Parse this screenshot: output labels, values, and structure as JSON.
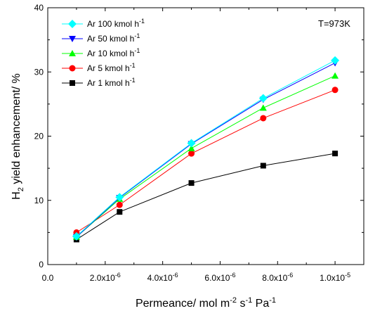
{
  "chart_data": {
    "type": "line",
    "title": "",
    "annotation": "T=973K",
    "xlabel": {
      "main": "Permeance/ mol m",
      "sup1": "-2",
      "mid1": " s",
      "sup2": "-1",
      "mid2": " Pa",
      "sup3": "-1"
    },
    "ylabel": {
      "main": "H",
      "sub": "2",
      "rest": " yield enhancement/ %"
    },
    "x": [
      1e-06,
      2.5e-06,
      5e-06,
      7.5e-06,
      1e-05
    ],
    "xlim": [
      0,
      1.1e-05
    ],
    "ylim": [
      0,
      40
    ],
    "xticks": [
      {
        "value": 0,
        "base": "0.0",
        "exp": ""
      },
      {
        "value": 2e-06,
        "base": "2.0x10",
        "exp": "-6"
      },
      {
        "value": 4e-06,
        "base": "4.0x10",
        "exp": "-6"
      },
      {
        "value": 6e-06,
        "base": "6.0x10",
        "exp": "-6"
      },
      {
        "value": 8e-06,
        "base": "8.0x10",
        "exp": "-6"
      },
      {
        "value": 1e-05,
        "base": "1.0x10",
        "exp": "-5"
      }
    ],
    "yticks": [
      0,
      10,
      20,
      30,
      40
    ],
    "grid": false,
    "legend_position": "top-left",
    "series": [
      {
        "name": "Ar 100 kmol h",
        "name_sup": "-1",
        "color": "#00FFFF",
        "marker": "diamond",
        "values": [
          4.4,
          10.5,
          18.9,
          25.9,
          31.8
        ]
      },
      {
        "name": "Ar 50 kmol h",
        "name_sup": "-1",
        "color": "#0000FF",
        "marker": "triangle-down",
        "values": [
          4.3,
          10.4,
          18.8,
          25.7,
          31.4
        ]
      },
      {
        "name": "Ar 10 kmol h",
        "name_sup": "-1",
        "color": "#00FF00",
        "marker": "triangle-up",
        "values": [
          4.3,
          10.2,
          18.1,
          24.4,
          29.4
        ]
      },
      {
        "name": "Ar 5 kmol h",
        "name_sup": "-1",
        "color": "#FF0000",
        "marker": "circle",
        "values": [
          5.0,
          9.3,
          17.3,
          22.8,
          27.2
        ]
      },
      {
        "name": "Ar 1 kmol h",
        "name_sup": "-1",
        "color": "#000000",
        "marker": "square",
        "values": [
          3.9,
          8.2,
          12.7,
          15.4,
          17.3
        ]
      }
    ]
  }
}
